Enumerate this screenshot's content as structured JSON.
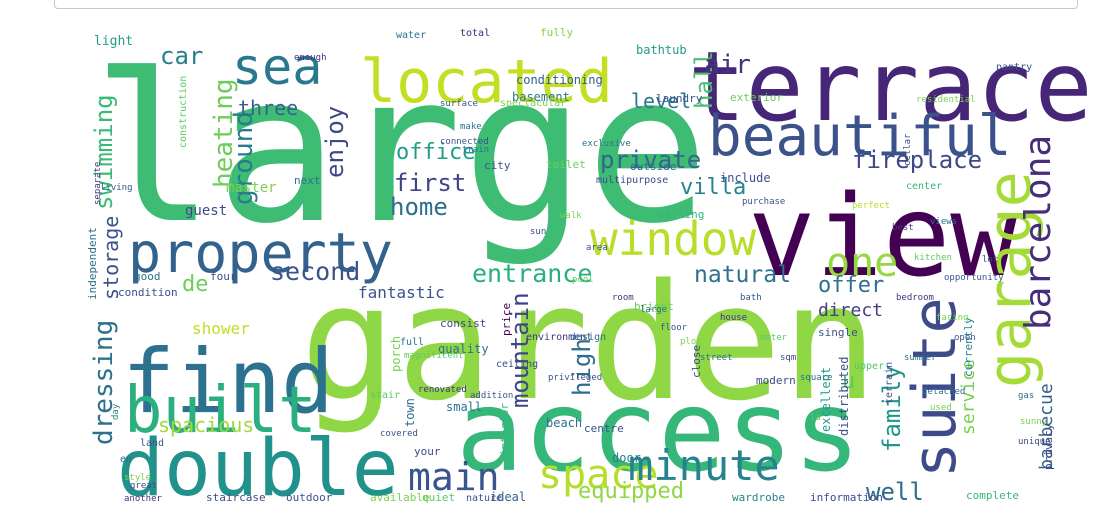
{
  "words": [
    {
      "text": "large",
      "color": "#3fbc73"
    },
    {
      "text": "garden",
      "color": "#8fd744"
    },
    {
      "text": "view",
      "color": "#440154"
    },
    {
      "text": "access",
      "color": "#35b779"
    },
    {
      "text": "terrace",
      "color": "#482677"
    },
    {
      "text": "double",
      "color": "#21918c"
    },
    {
      "text": "find",
      "color": "#2c728e"
    },
    {
      "text": "property",
      "color": "#33638d"
    },
    {
      "text": "located",
      "color": "#c2df23"
    },
    {
      "text": "beautiful",
      "color": "#3b528b"
    },
    {
      "text": "built",
      "color": "#2ab07f"
    },
    {
      "text": "garage",
      "color": "#a5db36"
    },
    {
      "text": "suite",
      "color": "#3e4a89"
    },
    {
      "text": "sea",
      "color": "#2a788e"
    },
    {
      "text": "window",
      "color": "#b8de29"
    },
    {
      "text": "space",
      "color": "#b5de2b"
    },
    {
      "text": "minute",
      "color": "#26828e"
    },
    {
      "text": "main",
      "color": "#39568c"
    },
    {
      "text": "barcelona",
      "color": "#472d7b"
    },
    {
      "text": "one",
      "color": "#95d840"
    },
    {
      "text": "private",
      "color": "#31668e"
    },
    {
      "text": "fireplace",
      "color": "#3e4989"
    },
    {
      "text": "entrance",
      "color": "#29af7f"
    },
    {
      "text": "natural",
      "color": "#2c728e"
    },
    {
      "text": "dressing",
      "color": "#2d708e"
    },
    {
      "text": "swimming",
      "color": "#3aba76"
    },
    {
      "text": "heating",
      "color": "#6ccd5a"
    },
    {
      "text": "ground",
      "color": "#287c8e"
    },
    {
      "text": "enjoy",
      "color": "#3e4989"
    },
    {
      "text": "first",
      "color": "#414487"
    },
    {
      "text": "home",
      "color": "#2e6f8e"
    },
    {
      "text": "office",
      "color": "#1f9e89"
    },
    {
      "text": "second",
      "color": "#3b528b"
    },
    {
      "text": "hall",
      "color": "#4ac16d"
    },
    {
      "text": "car",
      "color": "#277f8e"
    },
    {
      "text": "air",
      "color": "#46337e"
    },
    {
      "text": "level",
      "color": "#2a788e"
    },
    {
      "text": "three",
      "color": "#33638d"
    },
    {
      "text": "mountain",
      "color": "#414487"
    },
    {
      "text": "high",
      "color": "#2f6c8e"
    },
    {
      "text": "family",
      "color": "#1f968b"
    },
    {
      "text": "well",
      "color": "#306a8e"
    },
    {
      "text": "equipped",
      "color": "#8fd744"
    },
    {
      "text": "service",
      "color": "#7ad151"
    },
    {
      "text": "barbecue",
      "color": "#355f8d"
    },
    {
      "text": "villa",
      "color": "#25858e"
    },
    {
      "text": "offer",
      "color": "#2d718e"
    },
    {
      "text": "direct",
      "color": "#433e85"
    },
    {
      "text": "spacious",
      "color": "#9fda3a"
    },
    {
      "text": "storage",
      "color": "#3b528b"
    },
    {
      "text": "shower",
      "color": "#bddf26"
    },
    {
      "text": "de",
      "color": "#6ece58"
    },
    {
      "text": "u",
      "color": "#5ac864"
    },
    {
      "text": "fantastic",
      "color": "#3b528b"
    },
    {
      "text": "master",
      "color": "#7ad151"
    },
    {
      "text": "guest",
      "color": "#3e4a89"
    },
    {
      "text": "light",
      "color": "#1f9e89"
    },
    {
      "text": "water",
      "color": "#2c728e"
    },
    {
      "text": "total",
      "color": "#482878"
    },
    {
      "text": "fully",
      "color": "#84d44b"
    },
    {
      "text": "conditioning",
      "color": "#355f8d"
    },
    {
      "text": "basement",
      "color": "#2a788e"
    },
    {
      "text": "laundry",
      "color": "#3b528b"
    },
    {
      "text": "exterior",
      "color": "#6ccd5a"
    },
    {
      "text": "bathtub",
      "color": "#1f9e89"
    },
    {
      "text": "outside",
      "color": "#31688e"
    },
    {
      "text": "toilet",
      "color": "#6ccd5a"
    },
    {
      "text": "parking",
      "color": "#35b779"
    },
    {
      "text": "bright",
      "color": "#6ccd5a"
    },
    {
      "text": "quality",
      "color": "#2c728e"
    },
    {
      "text": "consist",
      "color": "#414487"
    },
    {
      "text": "modern",
      "color": "#3e4989"
    },
    {
      "text": "upper",
      "color": "#54c568"
    },
    {
      "text": "single",
      "color": "#3b528b"
    },
    {
      "text": "distributed",
      "color": "#3b528b"
    },
    {
      "text": "excellent",
      "color": "#1f9e89"
    },
    {
      "text": "currently",
      "color": "#26828e"
    },
    {
      "text": "close",
      "color": "#3e4a89"
    },
    {
      "text": "door",
      "color": "#277f8e"
    },
    {
      "text": "beach",
      "color": "#2c728e"
    },
    {
      "text": "centre",
      "color": "#3b528b"
    },
    {
      "text": "interior",
      "color": "#35b779"
    },
    {
      "text": "small",
      "color": "#2c728e"
    },
    {
      "text": "town",
      "color": "#2e6f8e"
    },
    {
      "text": "price",
      "color": "#440154"
    },
    {
      "text": "your",
      "color": "#3e4a89"
    },
    {
      "text": "ideal",
      "color": "#33638d"
    },
    {
      "text": "quiet",
      "color": "#5ec962"
    },
    {
      "text": "nature",
      "color": "#3b528b"
    },
    {
      "text": "available",
      "color": "#7ad151"
    },
    {
      "text": "outdoor",
      "color": "#3b528b"
    },
    {
      "text": "staircase",
      "color": "#3e4a89"
    },
    {
      "text": "another",
      "color": "#46327e"
    },
    {
      "text": "wardrobe",
      "color": "#26828e"
    },
    {
      "text": "information",
      "color": "#3e4989"
    },
    {
      "text": "complete",
      "color": "#35b779"
    },
    {
      "text": "privacy",
      "color": "#3e4a89"
    },
    {
      "text": "condition",
      "color": "#3b528b"
    },
    {
      "text": "good",
      "color": "#2c728e"
    },
    {
      "text": "four",
      "color": "#3b528b"
    },
    {
      "text": "independent",
      "color": "#2c728e"
    },
    {
      "text": "construction",
      "color": "#5ec962"
    },
    {
      "text": "separate",
      "color": "#46337e"
    },
    {
      "text": "next",
      "color": "#2c728e"
    },
    {
      "text": "city",
      "color": "#3b528b"
    },
    {
      "text": "include",
      "color": "#3b528b"
    },
    {
      "text": "center",
      "color": "#35b779"
    },
    {
      "text": "multipurpose",
      "color": "#3e4a89"
    },
    {
      "text": "porch",
      "color": "#7ad151"
    },
    {
      "text": "full",
      "color": "#2c728e"
    },
    {
      "text": "ceiling",
      "color": "#3e4a89"
    },
    {
      "text": "environment",
      "color": "#46337e"
    },
    {
      "text": "design",
      "color": "#2c728e"
    },
    {
      "text": "en",
      "color": "#2c728e"
    },
    {
      "text": "land",
      "color": "#3b528b"
    },
    {
      "text": "stair",
      "color": "#5ec962"
    },
    {
      "text": "day",
      "color": "#26828e"
    },
    {
      "text": "spectacular",
      "color": "#7ad151"
    },
    {
      "text": "surface",
      "color": "#3b528b"
    },
    {
      "text": "make",
      "color": "#2c728e"
    },
    {
      "text": "living",
      "color": "#3b528b"
    },
    {
      "text": "purchase",
      "color": "#3b528b"
    },
    {
      "text": "perfect",
      "color": "#b5de2b"
    },
    {
      "text": "pantry",
      "color": "#3b528b"
    },
    {
      "text": "unique",
      "color": "#3e4a89"
    },
    {
      "text": "gas",
      "color": "#2c728e"
    },
    {
      "text": "cellar",
      "color": "#3e4a89"
    },
    {
      "text": "residential",
      "color": "#7ad151"
    },
    {
      "text": "covered",
      "color": "#3b528b"
    },
    {
      "text": "renovated",
      "color": "#46337e"
    },
    {
      "text": "magnificent",
      "color": "#5ec962"
    },
    {
      "text": "great",
      "color": "#3b528b"
    },
    {
      "text": "style",
      "color": "#7ad151"
    },
    {
      "text": "enough",
      "color": "#46337e"
    },
    {
      "text": "terrain",
      "color": "#3b528b"
    },
    {
      "text": "used",
      "color": "#7ad151"
    },
    {
      "text": "lot",
      "color": "#3e4a89"
    },
    {
      "text": "la",
      "color": "#5ec962"
    },
    {
      "text": "addition",
      "color": "#3b528b"
    },
    {
      "text": "detached",
      "color": "#2c728e"
    },
    {
      "text": "sunny",
      "color": "#7ad151"
    },
    {
      "text": "privileged",
      "color": "#3b528b"
    },
    {
      "text": "exclusive",
      "color": "#2c728e"
    },
    {
      "text": "connected",
      "color": "#3b528b"
    },
    {
      "text": "train",
      "color": "#2c728e"
    },
    {
      "text": "best",
      "color": "#46337e"
    },
    {
      "text": "kitchen",
      "color": "#5ec962"
    },
    {
      "text": "opportunity",
      "color": "#3b528b"
    },
    {
      "text": "views",
      "color": "#2c728e"
    },
    {
      "text": "bedroom",
      "color": "#46337e"
    },
    {
      "text": "facing",
      "color": "#7ad151"
    },
    {
      "text": "open",
      "color": "#3b528b"
    },
    {
      "text": "summer",
      "color": "#2c728e"
    },
    {
      "text": "area",
      "color": "#3b528b"
    },
    {
      "text": "walk",
      "color": "#7ad151"
    },
    {
      "text": "sun",
      "color": "#3e4a89"
    },
    {
      "text": "pool",
      "color": "#5ec962"
    },
    {
      "text": "room",
      "color": "#46337e"
    },
    {
      "text": "large",
      "color": "#2c728e"
    },
    {
      "text": "floor",
      "color": "#3b528b"
    },
    {
      "text": "plot",
      "color": "#7ad151"
    },
    {
      "text": "street",
      "color": "#2c728e"
    },
    {
      "text": "house",
      "color": "#46337e"
    },
    {
      "text": "bath",
      "color": "#3b528b"
    },
    {
      "text": "meter",
      "color": "#5ec962"
    },
    {
      "text": "sqm",
      "color": "#3e4a89"
    },
    {
      "text": "square",
      "color": "#2c728e"
    },
    {
      "text": "build",
      "color": "#3b528b"
    },
    {
      "text": "place",
      "color": "#7ad151"
    }
  ]
}
